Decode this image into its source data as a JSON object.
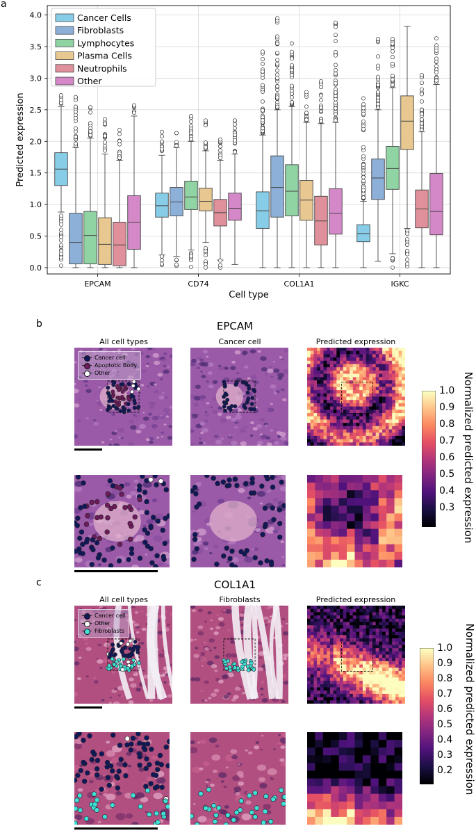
{
  "panel_labels": {
    "a": "a",
    "b": "b",
    "c": "c"
  },
  "chart_data": {
    "type": "boxplot",
    "ylabel": "Predicted expression",
    "xlabel": "Cell type",
    "ylim": [
      -0.1,
      4.15
    ],
    "yticks": [
      "0.0",
      "0.5",
      "1.0",
      "1.5",
      "2.0",
      "2.5",
      "3.0",
      "3.5",
      "4.0"
    ],
    "categories": [
      "EPCAM",
      "CD74",
      "COL1A1",
      "IGKC"
    ],
    "legend_position": "top-left",
    "series": [
      {
        "name": "Cancer Cells",
        "color": "#87cde8",
        "boxes": [
          {
            "q1": 1.3,
            "med": 1.56,
            "q3": 1.82,
            "lo": 0.88,
            "hi": 2.55,
            "omax": 2.73
          },
          {
            "q1": 0.8,
            "med": 0.98,
            "q3": 1.18,
            "lo": 0.2,
            "hi": 1.78,
            "omax": 2.15
          },
          {
            "q1": 0.62,
            "med": 0.9,
            "q3": 1.2,
            "lo": 0.0,
            "hi": 2.1,
            "omax": 3.42
          },
          {
            "q1": 0.41,
            "med": 0.54,
            "q3": 0.68,
            "lo": 0.0,
            "hi": 1.05,
            "omax": 2.68
          }
        ]
      },
      {
        "name": "Fibroblasts",
        "color": "#8cb0d8",
        "boxes": [
          {
            "q1": 0.06,
            "med": 0.4,
            "q3": 0.86,
            "lo": 0.0,
            "hi": 1.9,
            "omax": 2.7
          },
          {
            "q1": 0.82,
            "med": 1.04,
            "q3": 1.27,
            "lo": 0.18,
            "hi": 1.9,
            "omax": 2.13
          },
          {
            "q1": 0.8,
            "med": 1.27,
            "q3": 1.77,
            "lo": 0.0,
            "hi": 2.5,
            "omax": 3.95
          },
          {
            "q1": 1.08,
            "med": 1.42,
            "q3": 1.72,
            "lo": 0.1,
            "hi": 2.5,
            "omax": 3.62
          }
        ]
      },
      {
        "name": "Lymphocytes",
        "color": "#90d4a4",
        "boxes": [
          {
            "q1": 0.06,
            "med": 0.51,
            "q3": 0.89,
            "lo": 0.0,
            "hi": 2.05,
            "omax": 2.54
          },
          {
            "q1": 0.92,
            "med": 1.12,
            "q3": 1.37,
            "lo": 0.28,
            "hi": 2.0,
            "omax": 2.4
          },
          {
            "q1": 0.82,
            "med": 1.21,
            "q3": 1.63,
            "lo": 0.0,
            "hi": 2.55,
            "omax": 3.55
          },
          {
            "q1": 1.24,
            "med": 1.57,
            "q3": 1.92,
            "lo": 0.22,
            "hi": 2.85,
            "omax": 3.62
          }
        ]
      },
      {
        "name": "Plasma Cells",
        "color": "#e8c890",
        "boxes": [
          {
            "q1": 0.05,
            "med": 0.37,
            "q3": 0.79,
            "lo": 0.0,
            "hi": 1.8,
            "omax": 2.35
          },
          {
            "q1": 0.9,
            "med": 1.05,
            "q3": 1.26,
            "lo": 0.4,
            "hi": 1.85,
            "omax": 2.33
          },
          {
            "q1": 0.75,
            "med": 1.07,
            "q3": 1.38,
            "lo": 0.0,
            "hi": 2.3,
            "omax": 2.78
          },
          {
            "q1": 1.87,
            "med": 2.32,
            "q3": 2.72,
            "lo": 0.62,
            "hi": 3.82,
            "omax": 3.82
          }
        ]
      },
      {
        "name": "Neutrophils",
        "color": "#e0909a",
        "boxes": [
          {
            "q1": 0.03,
            "med": 0.36,
            "q3": 0.72,
            "lo": 0.0,
            "hi": 1.7,
            "omax": 2.18
          },
          {
            "q1": 0.66,
            "med": 0.87,
            "q3": 1.08,
            "lo": 0.12,
            "hi": 1.7,
            "omax": 2.03
          },
          {
            "q1": 0.36,
            "med": 0.74,
            "q3": 1.13,
            "lo": 0.0,
            "hi": 2.28,
            "omax": 2.95
          },
          {
            "q1": 0.63,
            "med": 0.93,
            "q3": 1.23,
            "lo": 0.0,
            "hi": 2.15,
            "omax": 3.05
          }
        ]
      },
      {
        "name": "Other",
        "color": "#d488c8",
        "boxes": [
          {
            "q1": 0.29,
            "med": 0.72,
            "q3": 1.14,
            "lo": 0.0,
            "hi": 2.4,
            "omax": 2.57
          },
          {
            "q1": 0.75,
            "med": 0.94,
            "q3": 1.18,
            "lo": 0.05,
            "hi": 1.8,
            "omax": 2.33
          },
          {
            "q1": 0.53,
            "med": 0.86,
            "q3": 1.25,
            "lo": 0.0,
            "hi": 2.3,
            "omax": 3.88
          },
          {
            "q1": 0.52,
            "med": 0.89,
            "q3": 1.49,
            "lo": 0.0,
            "hi": 2.9,
            "omax": 3.63
          }
        ]
      }
    ]
  },
  "panel_b": {
    "title": "EPCAM",
    "captions": [
      "All cell types",
      "Cancer cell",
      "Predicted expression"
    ],
    "legend": [
      {
        "label": "Cancer cell",
        "color": "#10185a"
      },
      {
        "label": "Apoptotic Body",
        "color": "#6e1a5c"
      },
      {
        "label": "Other",
        "color": "#ffffff"
      }
    ],
    "colorbar_label": "Normalized predicted expression",
    "colorbar_ticks": [
      "1.0",
      "0.9",
      "0.8",
      "0.7",
      "0.6",
      "0.5",
      "0.4",
      "0.3"
    ]
  },
  "panel_c": {
    "title": "COL1A1",
    "captions": [
      "All cell types",
      "Fibroblasts",
      "Predicted expression"
    ],
    "legend": [
      {
        "label": "Cancer cell",
        "color": "#10185a"
      },
      {
        "label": "Other",
        "color": "#ffffff"
      },
      {
        "label": "Fibroblasts",
        "color": "#40e0d8"
      }
    ],
    "colorbar_label": "Normalized predicted expression",
    "colorbar_ticks": [
      "1.0",
      "0.9",
      "0.8",
      "0.7",
      "0.6",
      "0.5",
      "0.4",
      "0.3",
      "0.2"
    ]
  }
}
